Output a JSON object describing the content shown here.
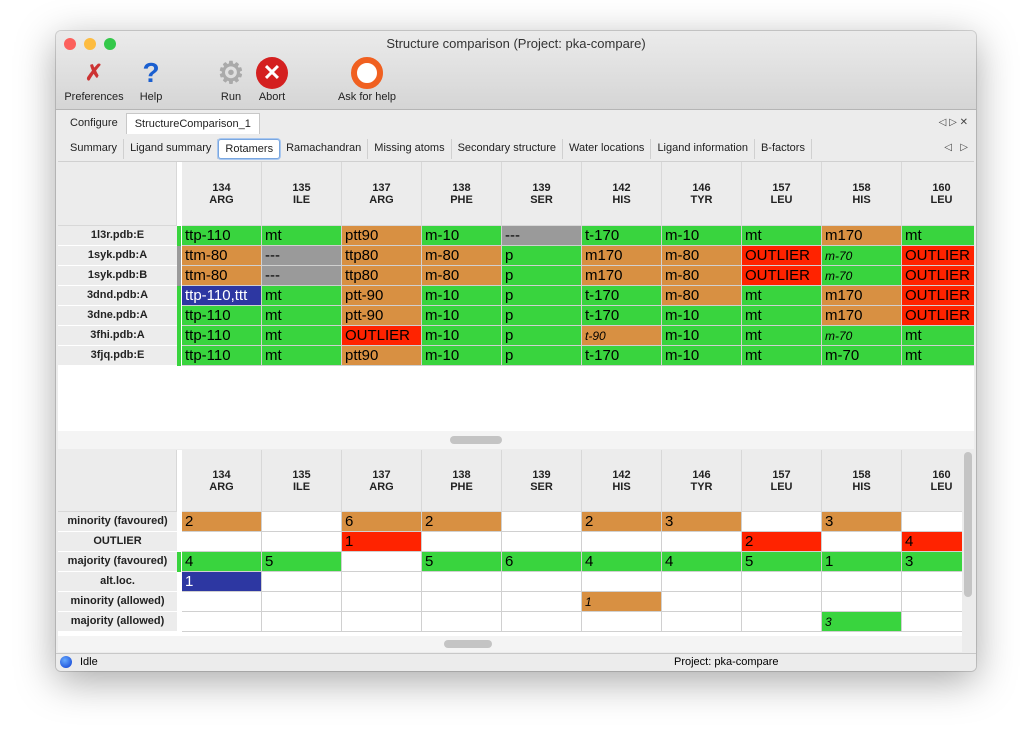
{
  "window": {
    "title": "Structure comparison (Project: pka-compare)"
  },
  "toolbar": [
    {
      "label": "Preferences",
      "icon": "tools-icon"
    },
    {
      "label": "Help",
      "icon": "help-icon"
    },
    {
      "label": "Run",
      "icon": "gear-icon"
    },
    {
      "label": "Abort",
      "icon": "abort-icon"
    },
    {
      "label": "Ask for help",
      "icon": "lifebuoy-icon"
    }
  ],
  "tabs": [
    "Configure",
    "StructureComparison_1"
  ],
  "subtabs": [
    "Summary",
    "Ligand summary",
    "Rotamers",
    "Ramachandran",
    "Missing atoms",
    "Secondary structure",
    "Water locations",
    "Ligand information",
    "B-factors"
  ],
  "active_subtab": "Rotamers",
  "columns": [
    [
      "134",
      "ARG"
    ],
    [
      "135",
      "ILE"
    ],
    [
      "137",
      "ARG"
    ],
    [
      "138",
      "PHE"
    ],
    [
      "139",
      "SER"
    ],
    [
      "142",
      "HIS"
    ],
    [
      "146",
      "TYR"
    ],
    [
      "157",
      "LEU"
    ],
    [
      "158",
      "HIS"
    ],
    [
      "160",
      "LEU"
    ]
  ],
  "colors": {
    "g": "#39d43e",
    "o": "#d89042",
    "r": "#ff2300",
    "x": "#9a9a9a",
    "b": "#2d37a2"
  },
  "top_rows": [
    {
      "label": "1l3r.pdb:E",
      "mark": "g",
      "cells": [
        [
          "ttp-110",
          "g"
        ],
        [
          "mt",
          "g"
        ],
        [
          "ptt90",
          "o"
        ],
        [
          "m-10",
          "g"
        ],
        [
          "---",
          "x"
        ],
        [
          "t-170",
          "g"
        ],
        [
          "m-10",
          "g"
        ],
        [
          "mt",
          "g"
        ],
        [
          "m170",
          "o"
        ],
        [
          "mt",
          "g"
        ]
      ]
    },
    {
      "label": "1syk.pdb:A",
      "mark": "x",
      "cells": [
        [
          "ttm-80",
          "o"
        ],
        [
          "---",
          "x"
        ],
        [
          "ttp80",
          "o"
        ],
        [
          "m-80",
          "o"
        ],
        [
          "p",
          "g"
        ],
        [
          "m170",
          "o"
        ],
        [
          "m-80",
          "o"
        ],
        [
          "OUTLIER",
          "r"
        ],
        [
          "m-70",
          "g",
          "i"
        ],
        [
          "OUTLIER",
          "r"
        ]
      ]
    },
    {
      "label": "1syk.pdb:B",
      "mark": "x",
      "cells": [
        [
          "ttm-80",
          "o"
        ],
        [
          "---",
          "x"
        ],
        [
          "ttp80",
          "o"
        ],
        [
          "m-80",
          "o"
        ],
        [
          "p",
          "g"
        ],
        [
          "m170",
          "o"
        ],
        [
          "m-80",
          "o"
        ],
        [
          "OUTLIER",
          "r"
        ],
        [
          "m-70",
          "g",
          "i"
        ],
        [
          "OUTLIER",
          "r"
        ]
      ]
    },
    {
      "label": "3dnd.pdb:A",
      "mark": "g",
      "cells": [
        [
          "ttp-110,ttt",
          "b"
        ],
        [
          "mt",
          "g"
        ],
        [
          "ptt-90",
          "o"
        ],
        [
          "m-10",
          "g"
        ],
        [
          "p",
          "g"
        ],
        [
          "t-170",
          "g"
        ],
        [
          "m-80",
          "o"
        ],
        [
          "mt",
          "g"
        ],
        [
          "m170",
          "o"
        ],
        [
          "OUTLIER",
          "r"
        ]
      ]
    },
    {
      "label": "3dne.pdb:A",
      "mark": "g",
      "cells": [
        [
          "ttp-110",
          "g"
        ],
        [
          "mt",
          "g"
        ],
        [
          "ptt-90",
          "o"
        ],
        [
          "m-10",
          "g"
        ],
        [
          "p",
          "g"
        ],
        [
          "t-170",
          "g"
        ],
        [
          "m-10",
          "g"
        ],
        [
          "mt",
          "g"
        ],
        [
          "m170",
          "o"
        ],
        [
          "OUTLIER",
          "r"
        ]
      ]
    },
    {
      "label": "3fhi.pdb:A",
      "mark": "g",
      "cells": [
        [
          "ttp-110",
          "g"
        ],
        [
          "mt",
          "g"
        ],
        [
          "OUTLIER",
          "r"
        ],
        [
          "m-10",
          "g"
        ],
        [
          "p",
          "g"
        ],
        [
          "t-90",
          "o",
          "i"
        ],
        [
          "m-10",
          "g"
        ],
        [
          "mt",
          "g"
        ],
        [
          "m-70",
          "g",
          "i"
        ],
        [
          "mt",
          "g"
        ]
      ]
    },
    {
      "label": "3fjq.pdb:E",
      "mark": "g",
      "cells": [
        [
          "ttp-110",
          "g"
        ],
        [
          "mt",
          "g"
        ],
        [
          "ptt90",
          "o"
        ],
        [
          "m-10",
          "g"
        ],
        [
          "p",
          "g"
        ],
        [
          "t-170",
          "g"
        ],
        [
          "m-10",
          "g"
        ],
        [
          "mt",
          "g"
        ],
        [
          "m-70",
          "g"
        ],
        [
          "mt",
          "g"
        ]
      ]
    }
  ],
  "bottom_rows": [
    {
      "label": "minority (favoured)",
      "mark": "w",
      "cells": [
        [
          "2",
          "o"
        ],
        [
          "",
          "w"
        ],
        [
          "6",
          "o"
        ],
        [
          "2",
          "o"
        ],
        [
          "",
          "w"
        ],
        [
          "2",
          "o"
        ],
        [
          "3",
          "o"
        ],
        [
          "",
          "w"
        ],
        [
          "3",
          "o"
        ],
        [
          "",
          "w"
        ]
      ]
    },
    {
      "label": "OUTLIER",
      "mark": "w",
      "cells": [
        [
          "",
          "w"
        ],
        [
          "",
          "w"
        ],
        [
          "1",
          "r"
        ],
        [
          "",
          "w"
        ],
        [
          "",
          "w"
        ],
        [
          "",
          "w"
        ],
        [
          "",
          "w"
        ],
        [
          "2",
          "r"
        ],
        [
          "",
          "w"
        ],
        [
          "4",
          "r"
        ]
      ]
    },
    {
      "label": "majority (favoured)",
      "mark": "g",
      "cells": [
        [
          "4",
          "g"
        ],
        [
          "5",
          "g"
        ],
        [
          "",
          "w"
        ],
        [
          "5",
          "g"
        ],
        [
          "6",
          "g"
        ],
        [
          "4",
          "g"
        ],
        [
          "4",
          "g"
        ],
        [
          "5",
          "g"
        ],
        [
          "1",
          "g"
        ],
        [
          "3",
          "g"
        ]
      ]
    },
    {
      "label": "alt.loc.",
      "mark": "w",
      "cells": [
        [
          "1",
          "b"
        ],
        [
          "",
          "w"
        ],
        [
          "",
          "w"
        ],
        [
          "",
          "w"
        ],
        [
          "",
          "w"
        ],
        [
          "",
          "w"
        ],
        [
          "",
          "w"
        ],
        [
          "",
          "w"
        ],
        [
          "",
          "w"
        ],
        [
          "",
          "w"
        ]
      ]
    },
    {
      "label": "minority (allowed)",
      "mark": "w",
      "cells": [
        [
          "",
          "w"
        ],
        [
          "",
          "w"
        ],
        [
          "",
          "w"
        ],
        [
          "",
          "w"
        ],
        [
          "",
          "w"
        ],
        [
          "1",
          "o",
          "i"
        ],
        [
          "",
          "w"
        ],
        [
          "",
          "w"
        ],
        [
          "",
          "w"
        ],
        [
          "",
          "w"
        ]
      ]
    },
    {
      "label": "majority (allowed)",
      "mark": "w",
      "cells": [
        [
          "",
          "w"
        ],
        [
          "",
          "w"
        ],
        [
          "",
          "w"
        ],
        [
          "",
          "w"
        ],
        [
          "",
          "w"
        ],
        [
          "",
          "w"
        ],
        [
          "",
          "w"
        ],
        [
          "",
          "w"
        ],
        [
          "3",
          "g",
          "i"
        ],
        [
          "",
          "w"
        ]
      ]
    }
  ],
  "status": {
    "text": "Idle",
    "project": "Project: pka-compare"
  }
}
